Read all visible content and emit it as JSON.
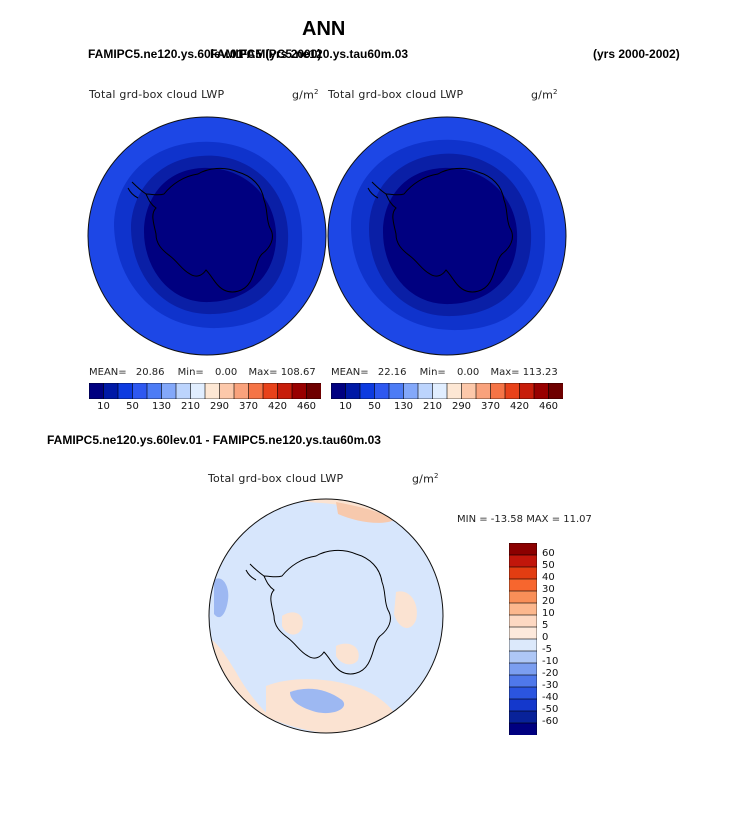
{
  "chart_data": {
    "type": "polar-contour-map",
    "title": "ANN",
    "header": {
      "case_left": "FAMIPC5.ne120.ys.60lev.01",
      "case_left_overlap": "FAMIPC5 (yrs 2000)",
      "case_right": "FAMIPC5.ne120.ys.tau60m.03",
      "years": "(yrs 2000-2002)"
    },
    "panels": [
      {
        "name": "control",
        "field_label": "Total grd-box cloud LWP",
        "units": "g/m",
        "units_exp": "2",
        "mean_label": "MEAN=",
        "mean": "20.86",
        "min_label": "Min=",
        "min": "0.00",
        "max_label": "Max=",
        "max": "108.67",
        "colorbar_ticks": [
          "10",
          "50",
          "130",
          "210",
          "290",
          "370",
          "420",
          "460"
        ],
        "levels": [
          10,
          20,
          50,
          80,
          130,
          170,
          210,
          250,
          290,
          330,
          370,
          400,
          420,
          440,
          460
        ],
        "band_colors": [
          "#000080",
          "#0019a6",
          "#0d3be0",
          "#2e58f0",
          "#4d7cf5"
        ]
      },
      {
        "name": "test",
        "field_label": "Total grd-box cloud LWP",
        "units": "g/m",
        "units_exp": "2",
        "mean_label": "MEAN=",
        "mean": "22.16",
        "min_label": "Min=",
        "min": "0.00",
        "max_label": "Max=",
        "max": "113.23",
        "colorbar_ticks": [
          "10",
          "50",
          "130",
          "210",
          "290",
          "370",
          "420",
          "460"
        ],
        "levels": [
          10,
          20,
          50,
          80,
          130,
          170,
          210,
          250,
          290,
          330,
          370,
          400,
          420,
          440,
          460
        ],
        "band_colors": [
          "#000080",
          "#0019a6",
          "#0d3be0",
          "#2e58f0",
          "#4d7cf5"
        ]
      }
    ],
    "diff": {
      "title": "FAMIPC5.ne120.ys.60lev.01 - FAMIPC5.ne120.ys.tau60m.03",
      "field_label": "Total grd-box cloud LWP",
      "units": "g/m",
      "units_exp": "2",
      "min_max_label": "MIN = -13.58 MAX =  11.07",
      "min": -13.58,
      "max": 11.07,
      "colorbar_ticks": [
        "60",
        "50",
        "40",
        "30",
        "20",
        "10",
        "5",
        "0",
        "-5",
        "-10",
        "-20",
        "-30",
        "-40",
        "-50",
        "-60"
      ]
    },
    "colorbar_colors_seq": [
      "#000080",
      "#0019a6",
      "#0d3be0",
      "#2e58f0",
      "#4d7cf5",
      "#83a8fa",
      "#bcd4fd",
      "#e1eeff",
      "#fde7d4",
      "#fcc8aa",
      "#f9a27c",
      "#f57446",
      "#e8421a",
      "#c71d0a",
      "#980000",
      "#6e0000"
    ],
    "colorbar_colors_diff": [
      "#8b0000",
      "#c1160b",
      "#e23d12",
      "#f7662e",
      "#f98f58",
      "#fcb78d",
      "#fdd8c2",
      "#fde9dc",
      "#dce9fb",
      "#aec7f6",
      "#7b9ef0",
      "#4f78ea",
      "#2b55e0",
      "#1438cc",
      "#082299",
      "#000080"
    ],
    "colors": {
      "land_outline": "#000000",
      "diff_background": "#d7e6fc",
      "diff_positive": "#fbe3d2",
      "diff_negative": "#9db8f2"
    }
  }
}
